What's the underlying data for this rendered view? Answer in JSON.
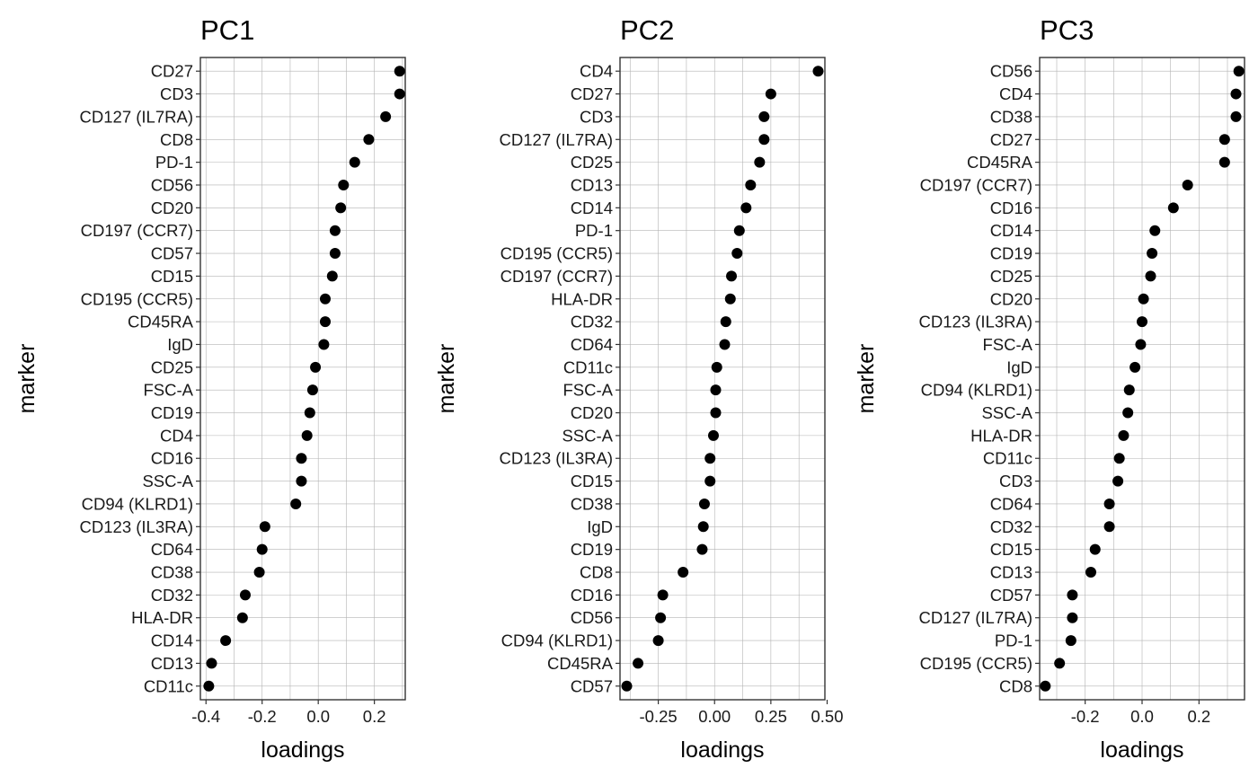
{
  "chart_data": [
    {
      "type": "scatter",
      "title": "PC1",
      "xlabel": "loadings",
      "ylabel": "marker",
      "xlim": [
        -0.42,
        0.31
      ],
      "xticks": [
        -0.4,
        -0.2,
        0.0,
        0.2
      ],
      "xtick_labels": [
        "-0.4",
        "-0.2",
        "0.0",
        "0.2"
      ],
      "grid": true,
      "categories": [
        "CD27",
        "CD3",
        "CD127 (IL7RA)",
        "CD8",
        "PD-1",
        "CD56",
        "CD20",
        "CD197 (CCR7)",
        "CD57",
        "CD15",
        "CD195 (CCR5)",
        "CD45RA",
        "IgD",
        "CD25",
        "FSC-A",
        "CD19",
        "CD4",
        "CD16",
        "SSC-A",
        "CD94 (KLRD1)",
        "CD123 (IL3RA)",
        "CD64",
        "CD38",
        "CD32",
        "HLA-DR",
        "CD14",
        "CD13",
        "CD11c"
      ],
      "values": [
        0.29,
        0.29,
        0.24,
        0.18,
        0.13,
        0.09,
        0.08,
        0.06,
        0.06,
        0.05,
        0.025,
        0.025,
        0.02,
        -0.01,
        -0.02,
        -0.03,
        -0.04,
        -0.06,
        -0.06,
        -0.08,
        -0.19,
        -0.2,
        -0.21,
        -0.26,
        -0.27,
        -0.33,
        -0.38,
        -0.39
      ]
    },
    {
      "type": "scatter",
      "title": "PC2",
      "xlabel": "loadings",
      "ylabel": "marker",
      "xlim": [
        -0.42,
        0.49
      ],
      "xticks": [
        -0.25,
        0.0,
        0.25,
        0.5
      ],
      "xtick_labels": [
        "-0.25",
        "0.00",
        "0.25",
        "0.50"
      ],
      "grid": true,
      "categories": [
        "CD4",
        "CD27",
        "CD3",
        "CD127 (IL7RA)",
        "CD25",
        "CD13",
        "CD14",
        "PD-1",
        "CD195 (CCR5)",
        "CD197 (CCR7)",
        "HLA-DR",
        "CD32",
        "CD64",
        "CD11c",
        "FSC-A",
        "CD20",
        "SSC-A",
        "CD123 (IL3RA)",
        "CD15",
        "CD38",
        "IgD",
        "CD19",
        "CD8",
        "CD16",
        "CD56",
        "CD94 (KLRD1)",
        "CD45RA",
        "CD57"
      ],
      "values": [
        0.46,
        0.25,
        0.22,
        0.22,
        0.2,
        0.16,
        0.14,
        0.11,
        0.1,
        0.075,
        0.07,
        0.05,
        0.045,
        0.01,
        0.005,
        0.005,
        -0.005,
        -0.02,
        -0.02,
        -0.045,
        -0.05,
        -0.055,
        -0.14,
        -0.23,
        -0.24,
        -0.25,
        -0.34,
        -0.39
      ]
    },
    {
      "type": "scatter",
      "title": "PC3",
      "xlabel": "loadings",
      "ylabel": "marker",
      "xlim": [
        -0.36,
        0.36
      ],
      "xticks": [
        -0.2,
        0.0,
        0.2
      ],
      "xtick_labels": [
        "-0.2",
        "0.0",
        "0.2"
      ],
      "grid": true,
      "categories": [
        "CD56",
        "CD4",
        "CD38",
        "CD27",
        "CD45RA",
        "CD197 (CCR7)",
        "CD16",
        "CD14",
        "CD19",
        "CD25",
        "CD20",
        "CD123 (IL3RA)",
        "FSC-A",
        "IgD",
        "CD94 (KLRD1)",
        "SSC-A",
        "HLA-DR",
        "CD11c",
        "CD3",
        "CD64",
        "CD32",
        "CD15",
        "CD13",
        "CD57",
        "CD127 (IL7RA)",
        "PD-1",
        "CD195 (CCR5)",
        "CD8"
      ],
      "values": [
        0.34,
        0.33,
        0.33,
        0.29,
        0.29,
        0.16,
        0.11,
        0.045,
        0.035,
        0.03,
        0.005,
        0.0,
        -0.005,
        -0.025,
        -0.045,
        -0.05,
        -0.065,
        -0.08,
        -0.085,
        -0.115,
        -0.115,
        -0.165,
        -0.18,
        -0.245,
        -0.245,
        -0.25,
        -0.29,
        -0.34
      ]
    }
  ]
}
